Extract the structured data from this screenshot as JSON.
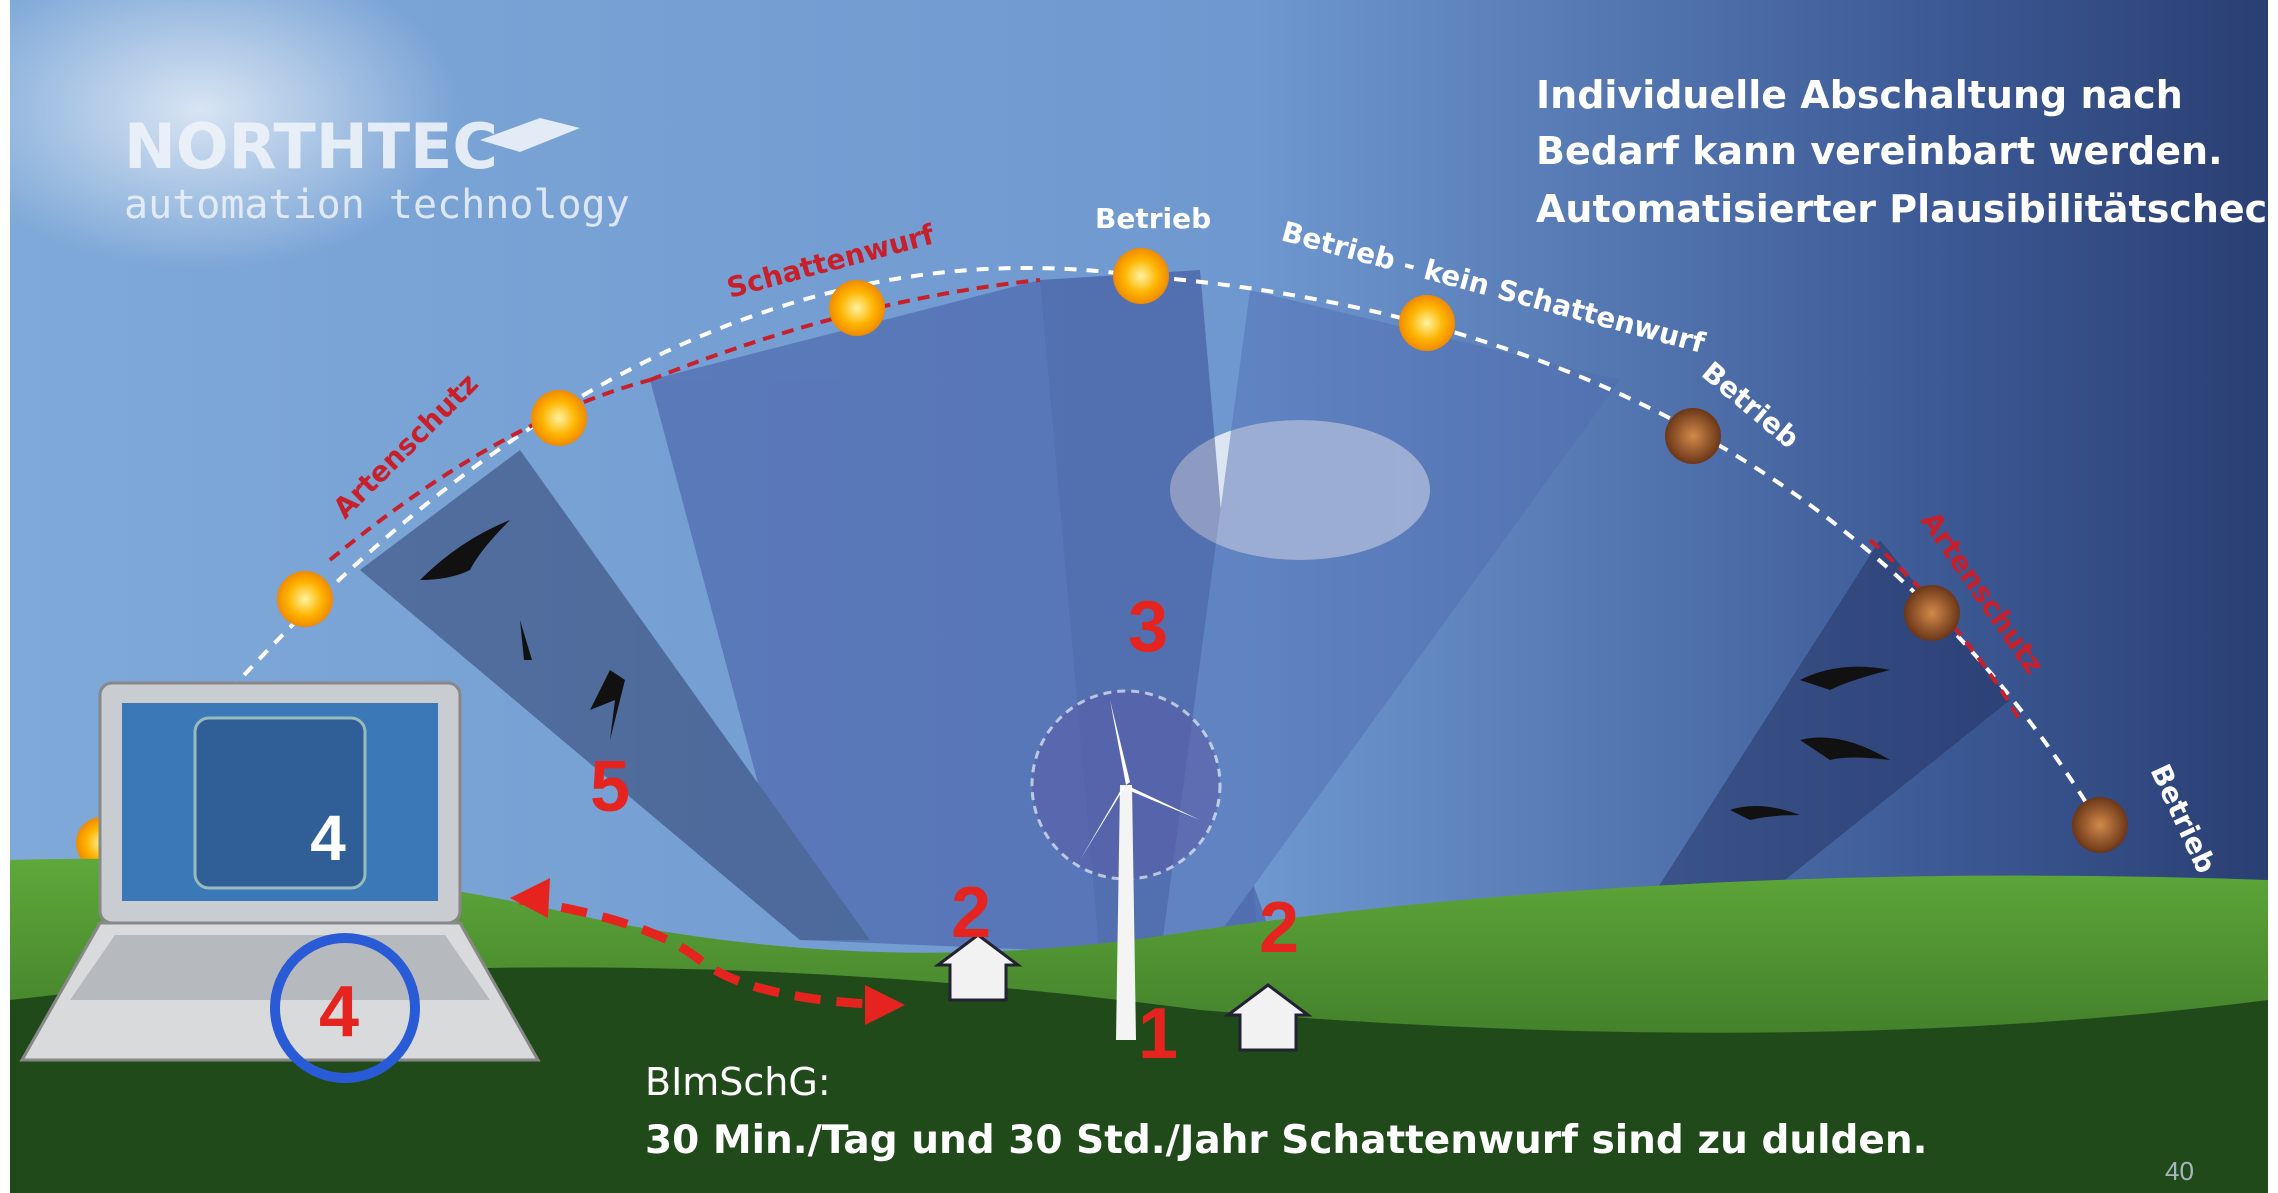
{
  "logo": {
    "name": "NORTHTEC",
    "tagline": "automation technology"
  },
  "note": {
    "lines": [
      "Individuelle Abschaltung nach",
      "Bedarf kann vereinbart werden.",
      "Automatisierter Plausibilitätscheck."
    ]
  },
  "arc_labels": [
    "Artenschutz",
    "Schattenwurf",
    "Betrieb",
    "Betrieb - kein Schattenwurf",
    "Betrieb",
    "Artenschutz",
    "Betrieb"
  ],
  "markers": [
    "1",
    "2",
    "2",
    "3",
    "4",
    "4",
    "5"
  ],
  "footer": {
    "law": "BImSchG:",
    "rule": "30 Min./Tag und 30 Std./Jahr Schattenwurf sind zu dulden."
  },
  "page_number": "40"
}
